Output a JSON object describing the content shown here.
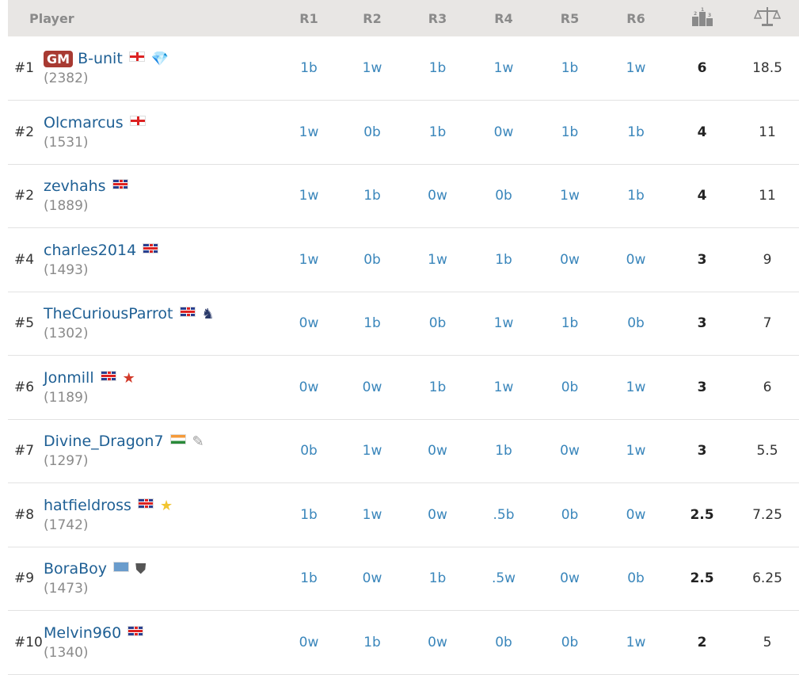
{
  "header": {
    "player": "Player",
    "rounds": [
      "R1",
      "R2",
      "R3",
      "R4",
      "R5",
      "R6"
    ],
    "score_icon": "podium-icon",
    "tiebreak_icon": "scales-icon"
  },
  "colors": {
    "name": "#1e5f94",
    "result": "#3a86bb",
    "gm_badge": "#a83a32",
    "header_bg": "#e8e6e4"
  },
  "players": [
    {
      "rank": "#1",
      "title": "GM",
      "name": "B-unit",
      "flag": "england",
      "badge": "diamond-icon",
      "rating": "(2382)",
      "results": [
        "1b",
        "1w",
        "1b",
        "1w",
        "1b",
        "1w"
      ],
      "score": "6",
      "tiebreak": "18.5"
    },
    {
      "rank": "#2",
      "name": "Olcmarcus",
      "flag": "england",
      "rating": "(1531)",
      "results": [
        "1w",
        "0b",
        "1b",
        "0w",
        "1b",
        "1b"
      ],
      "score": "4",
      "tiebreak": "11"
    },
    {
      "rank": "#2",
      "name": "zevhahs",
      "flag": "gb",
      "rating": "(1889)",
      "results": [
        "1w",
        "1b",
        "0w",
        "0b",
        "1w",
        "1b"
      ],
      "score": "4",
      "tiebreak": "11"
    },
    {
      "rank": "#4",
      "name": "charles2014",
      "flag": "gb",
      "rating": "(1493)",
      "results": [
        "1w",
        "0b",
        "1w",
        "1b",
        "0w",
        "0w"
      ],
      "score": "3",
      "tiebreak": "9"
    },
    {
      "rank": "#5",
      "name": "TheCuriousParrot",
      "flag": "gb",
      "badge": "knight-icon",
      "rating": "(1302)",
      "results": [
        "0w",
        "1b",
        "0b",
        "1w",
        "1b",
        "0b"
      ],
      "score": "3",
      "tiebreak": "7"
    },
    {
      "rank": "#6",
      "name": "Jonmill",
      "flag": "gb",
      "badge": "red-star-icon",
      "rating": "(1189)",
      "results": [
        "0w",
        "0w",
        "1b",
        "1w",
        "0b",
        "1w"
      ],
      "score": "3",
      "tiebreak": "6"
    },
    {
      "rank": "#7",
      "name": "Divine_Dragon7",
      "flag": "india",
      "badge": "scroll-icon",
      "rating": "(1297)",
      "results": [
        "0b",
        "1w",
        "0w",
        "1b",
        "0w",
        "1w"
      ],
      "score": "3",
      "tiebreak": "5.5"
    },
    {
      "rank": "#8",
      "name": "hatfieldross",
      "flag": "gb",
      "badge": "gold-star-icon",
      "rating": "(1742)",
      "results": [
        "1b",
        "1w",
        "0w",
        ".5b",
        "0b",
        "0w"
      ],
      "score": "2.5",
      "tiebreak": "7.25"
    },
    {
      "rank": "#9",
      "name": "BoraBoy",
      "flag": "world",
      "badge": "castle-shield-icon",
      "rating": "(1473)",
      "results": [
        "1b",
        "0w",
        "1b",
        ".5w",
        "0w",
        "0b"
      ],
      "score": "2.5",
      "tiebreak": "6.25"
    },
    {
      "rank": "#10",
      "name": "Melvin960",
      "flag": "gb",
      "rating": "(1340)",
      "results": [
        "0w",
        "1b",
        "0w",
        "0b",
        "0b",
        "1w"
      ],
      "score": "2",
      "tiebreak": "5"
    }
  ]
}
